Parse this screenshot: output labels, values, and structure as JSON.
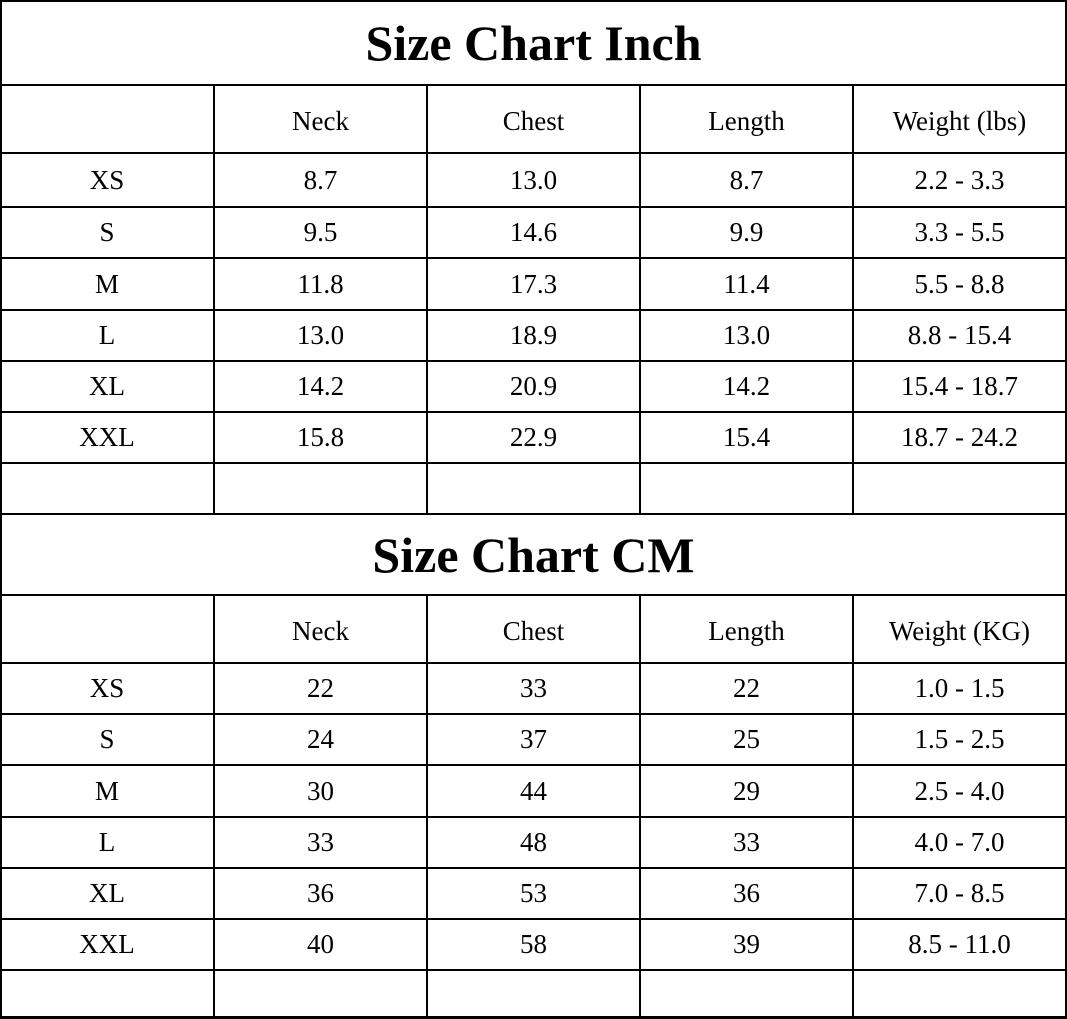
{
  "sections": [
    {
      "title": "Size Chart Inch",
      "headers": [
        "",
        "Neck",
        "Chest",
        "Length",
        "Weight (lbs)"
      ],
      "rows": [
        [
          "XS",
          "8.7",
          "13.0",
          "8.7",
          "2.2 - 3.3"
        ],
        [
          "S",
          "9.5",
          "14.6",
          "9.9",
          "3.3 - 5.5"
        ],
        [
          "M",
          "11.8",
          "17.3",
          "11.4",
          "5.5 - 8.8"
        ],
        [
          "L",
          "13.0",
          "18.9",
          "13.0",
          "8.8 - 15.4"
        ],
        [
          "XL",
          "14.2",
          "20.9",
          "14.2",
          "15.4 - 18.7"
        ],
        [
          "XXL",
          "15.8",
          "22.9",
          "15.4",
          "18.7 - 24.2"
        ],
        [
          "",
          "",
          "",
          "",
          ""
        ]
      ]
    },
    {
      "title": "Size Chart CM",
      "headers": [
        "",
        "Neck",
        "Chest",
        "Length",
        "Weight (KG)"
      ],
      "rows": [
        [
          "XS",
          "22",
          "33",
          "22",
          "1.0 - 1.5"
        ],
        [
          "S",
          "24",
          "37",
          "25",
          "1.5 - 2.5"
        ],
        [
          "M",
          "30",
          "44",
          "29",
          "2.5 - 4.0"
        ],
        [
          "L",
          "33",
          "48",
          "33",
          "4.0 - 7.0"
        ],
        [
          "XL",
          "36",
          "53",
          "36",
          "7.0 - 8.5"
        ],
        [
          "XXL",
          "40",
          "58",
          "39",
          "8.5 - 11.0"
        ],
        [
          "",
          "",
          "",
          "",
          ""
        ]
      ]
    }
  ]
}
